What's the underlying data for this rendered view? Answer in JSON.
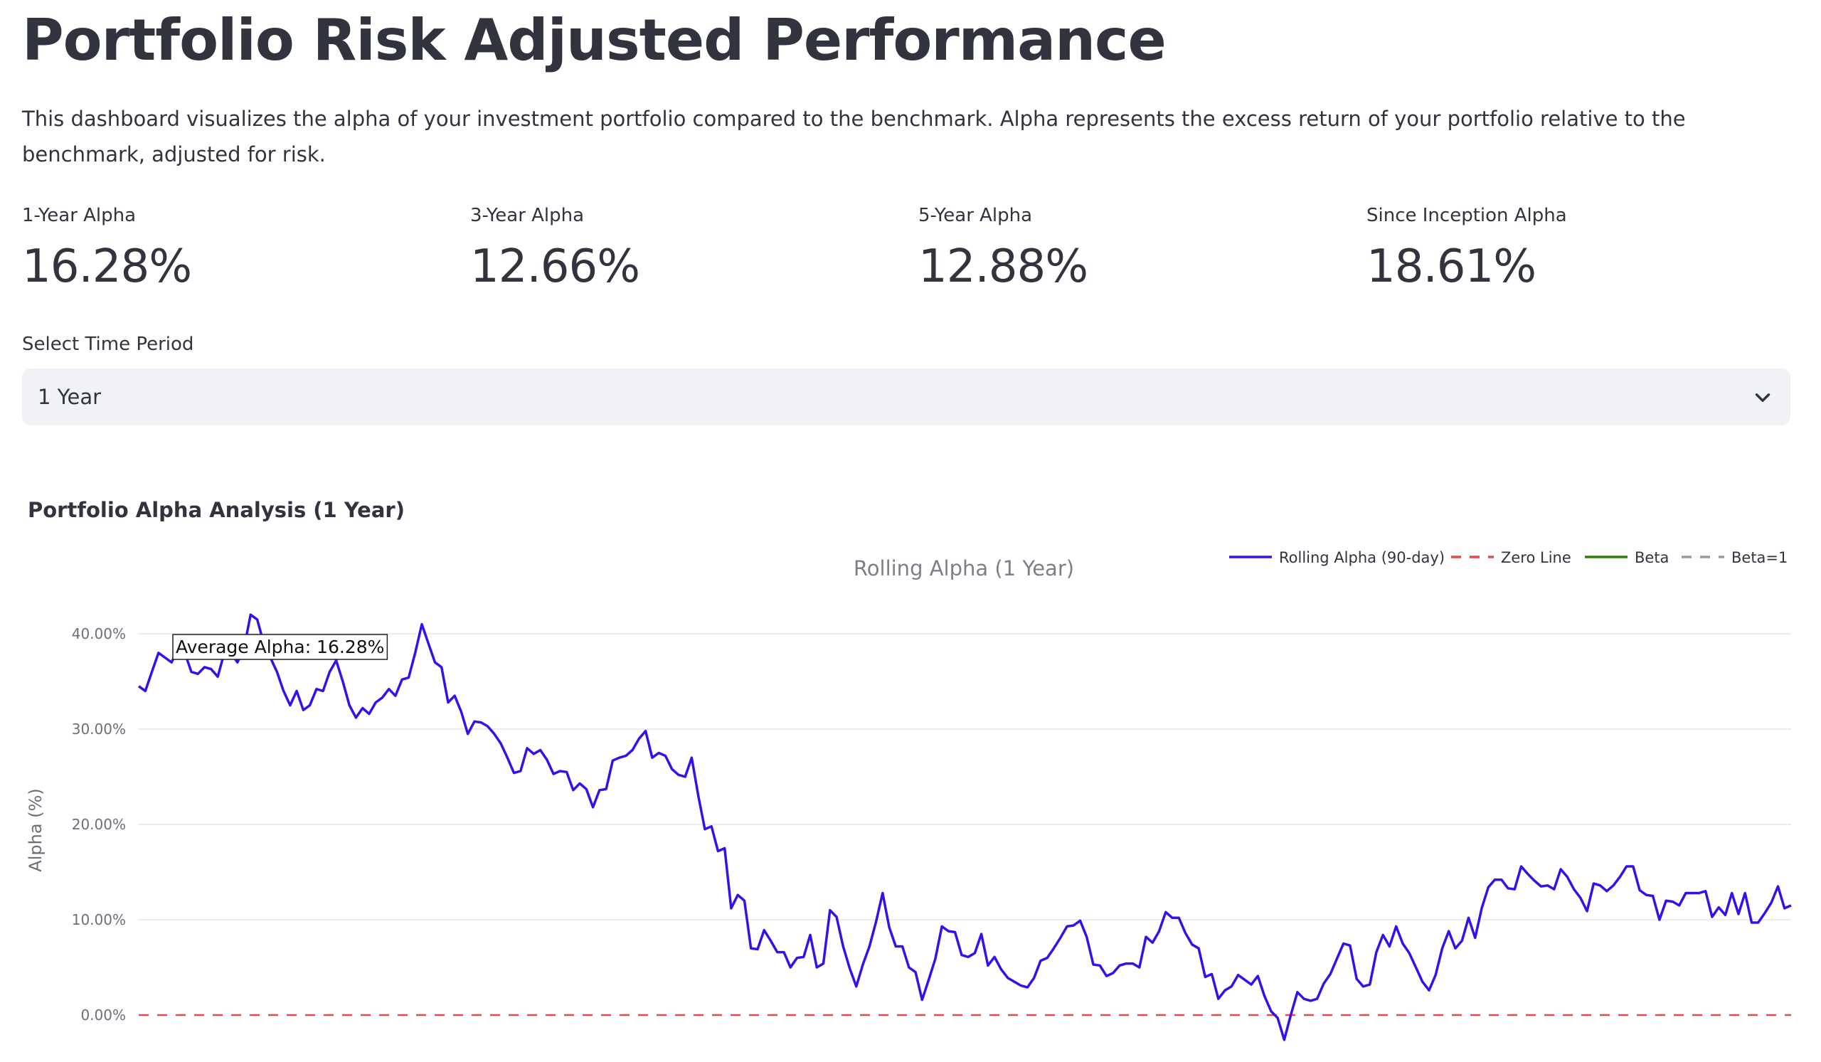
{
  "page": {
    "title": "Portfolio Risk Adjusted Performance",
    "description": "This dashboard visualizes the alpha of your investment portfolio compared to the benchmark. Alpha represents the excess return of your portfolio relative to the benchmark, adjusted for risk."
  },
  "metrics": [
    {
      "label": "1-Year Alpha",
      "value": "16.28%"
    },
    {
      "label": "3-Year Alpha",
      "value": "12.66%"
    },
    {
      "label": "5-Year Alpha",
      "value": "12.88%"
    },
    {
      "label": "Since Inception Alpha",
      "value": "18.61%"
    }
  ],
  "period_select": {
    "label": "Select Time Period",
    "value": "1 Year",
    "icon": "chevron-down-icon"
  },
  "section_title": "Portfolio Alpha Analysis (1 Year)",
  "colors": {
    "alpha_line": "#3311ee",
    "zero_line": "#e34a4a",
    "beta": "#2e7d0b",
    "beta1": "#9a9a9a",
    "select_bg": "#f0f2f6"
  },
  "chart_data": {
    "type": "line",
    "title": "Rolling Alpha (1 Year)",
    "ylabel": "Alpha (%)",
    "xlabel": "",
    "ylim": [
      -3,
      43
    ],
    "yticks": [
      0,
      10,
      20,
      30,
      40
    ],
    "ytick_labels": [
      "0.00%",
      "10.00%",
      "20.00%",
      "30.00%",
      "40.00%"
    ],
    "grid": true,
    "legend_position": "top-right",
    "legend": [
      {
        "name": "Rolling Alpha (90-day)",
        "style": "solid",
        "color": "#3311ee"
      },
      {
        "name": "Zero Line",
        "style": "dashed",
        "color": "#e34a4a"
      },
      {
        "name": "Beta",
        "style": "solid",
        "color": "#2e7d0b"
      },
      {
        "name": "Beta=1",
        "style": "dashed",
        "color": "#9a9a9a"
      }
    ],
    "annotation": "Average Alpha: 16.28%",
    "series": [
      {
        "name": "Rolling Alpha (90-day)",
        "values": [
          34.5,
          34.0,
          36.0,
          38.0,
          37.5,
          37.0,
          38.5,
          38.0,
          36.0,
          35.8,
          36.5,
          36.3,
          35.5,
          38.0,
          38.0,
          37.0,
          38.5,
          42.0,
          41.5,
          39.0,
          37.5,
          36.0,
          34.0,
          32.5,
          34.0,
          32.0,
          32.5,
          34.2,
          34.0,
          36.0,
          37.2,
          35.0,
          32.5,
          31.2,
          32.2,
          31.6,
          32.8,
          33.3,
          34.2,
          33.5,
          35.2,
          35.4,
          38.0,
          41.0,
          39.0,
          37.0,
          36.5,
          32.8,
          33.5,
          31.8,
          29.5,
          30.8,
          30.7,
          30.3,
          29.5,
          28.5,
          27.0,
          25.4,
          25.6,
          28.0,
          27.4,
          27.8,
          26.8,
          25.3,
          25.6,
          25.5,
          23.6,
          24.3,
          23.7,
          21.8,
          23.6,
          23.7,
          26.7,
          27.0,
          27.2,
          27.8,
          29.0,
          29.8,
          27.0,
          27.5,
          27.2,
          25.8,
          25.2,
          25.0,
          27.0,
          23.0,
          19.5,
          19.8,
          17.2,
          17.5,
          11.2,
          12.6,
          12.0,
          7.0,
          6.9,
          8.9,
          7.8,
          6.6,
          6.6,
          5.0,
          6.0,
          6.1,
          8.4,
          5.0,
          5.4,
          11.0,
          10.3,
          7.2,
          4.9,
          3.0,
          5.3,
          7.2,
          9.8,
          12.8,
          9.2,
          7.2,
          7.2,
          5.0,
          4.5,
          1.6,
          3.7,
          5.9,
          9.3,
          8.8,
          8.7,
          6.3,
          6.1,
          6.5,
          8.5,
          5.2,
          6.1,
          4.8,
          3.9,
          3.5,
          3.1,
          2.9,
          3.9,
          5.7,
          6.0,
          7.0,
          8.1,
          9.3,
          9.4,
          9.9,
          8.2,
          5.3,
          5.2,
          4.1,
          4.4,
          5.2,
          5.4,
          5.4,
          5.0,
          8.2,
          7.6,
          8.8,
          10.8,
          10.2,
          10.2,
          8.6,
          7.4,
          7.0,
          4.0,
          4.3,
          1.7,
          2.6,
          3.0,
          4.2,
          3.7,
          3.2,
          4.1,
          2.0,
          0.4,
          -0.3,
          -2.6,
          0.0,
          2.4,
          1.7,
          1.5,
          1.7,
          3.3,
          4.3,
          5.9,
          7.5,
          7.3,
          3.8,
          3.0,
          3.2,
          6.6,
          8.4,
          7.2,
          9.3,
          7.5,
          6.5,
          5.0,
          3.5,
          2.6,
          4.2,
          7.0,
          8.8,
          7.0,
          7.8,
          10.2,
          8.1,
          11.2,
          13.4,
          14.2,
          14.2,
          13.3,
          13.2,
          15.6,
          14.8,
          14.1,
          13.5,
          13.6,
          13.2,
          15.3,
          14.5,
          13.2,
          12.3,
          10.9,
          13.8,
          13.6,
          13.0,
          13.6,
          14.5,
          15.6,
          15.6,
          13.1,
          12.6,
          12.5,
          10.0,
          12.0,
          11.9,
          11.5,
          12.8,
          12.8,
          12.8,
          13.0,
          10.3,
          11.3,
          10.5,
          12.8,
          10.6,
          12.8,
          9.7,
          9.7,
          10.7,
          11.8,
          13.5,
          11.2,
          11.5
        ]
      }
    ]
  }
}
